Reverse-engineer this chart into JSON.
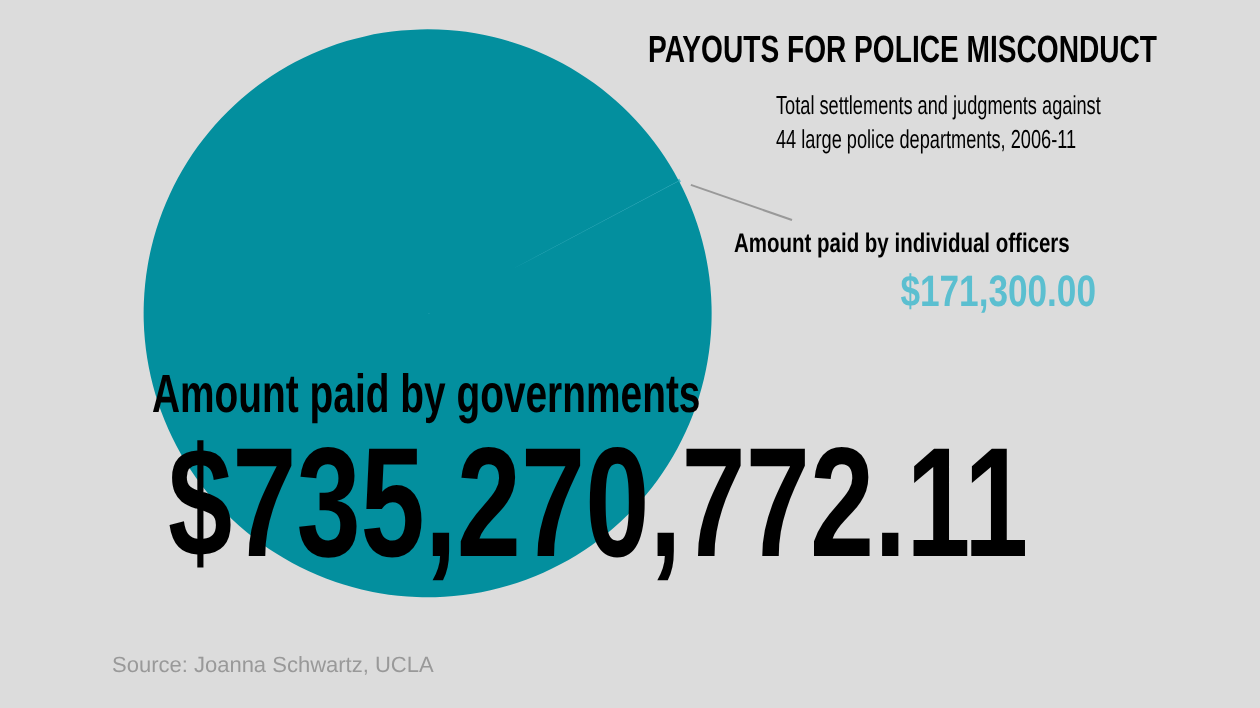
{
  "chart_data": {
    "type": "pie",
    "title": "PAYOUTS FOR POLICE MISCONDUCT",
    "subtitle": "Total settlements and judgments against\n44 large police departments, 2006-11",
    "categories": [
      "Amount paid by individual officers",
      "Amount paid by governments"
    ],
    "values": [
      171300.0,
      735270772.11
    ],
    "colors": [
      "#5bbfd0",
      "#038f9e"
    ],
    "value_labels": [
      "$171,300.00",
      "$735,270,772.11"
    ],
    "annotations": [
      "Source: Joanna Schwartz, UCLA"
    ]
  }
}
